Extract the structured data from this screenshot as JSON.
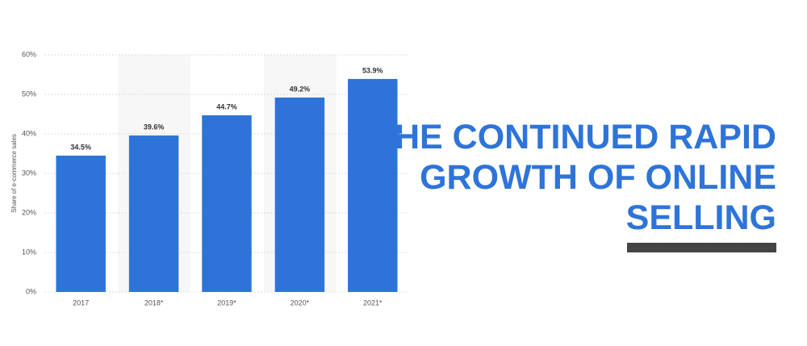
{
  "chart_data": {
    "type": "bar",
    "y_label": "Share of e-commerce sales",
    "categories": [
      "2017",
      "2018*",
      "2019*",
      "2020*",
      "2021*"
    ],
    "values": [
      34.5,
      39.6,
      44.7,
      49.2,
      53.9
    ],
    "value_labels": [
      "34.5%",
      "39.6%",
      "44.7%",
      "49.2%",
      "53.9%"
    ],
    "color": "#2e74d8",
    "ylim": [
      0,
      60
    ],
    "yticks": [
      {
        "value": 0,
        "label": "0%"
      },
      {
        "value": 10,
        "label": "10%"
      },
      {
        "value": 20,
        "label": "20%"
      },
      {
        "value": 30,
        "label": "30%"
      },
      {
        "value": 40,
        "label": "40%"
      },
      {
        "value": 50,
        "label": "50%"
      },
      {
        "value": 60,
        "label": "60%"
      }
    ],
    "grid": true
  },
  "headline": {
    "lines": [
      "THE CONTINUED RAPID",
      "GROWTH OF ONLINE",
      "SELLING"
    ]
  }
}
